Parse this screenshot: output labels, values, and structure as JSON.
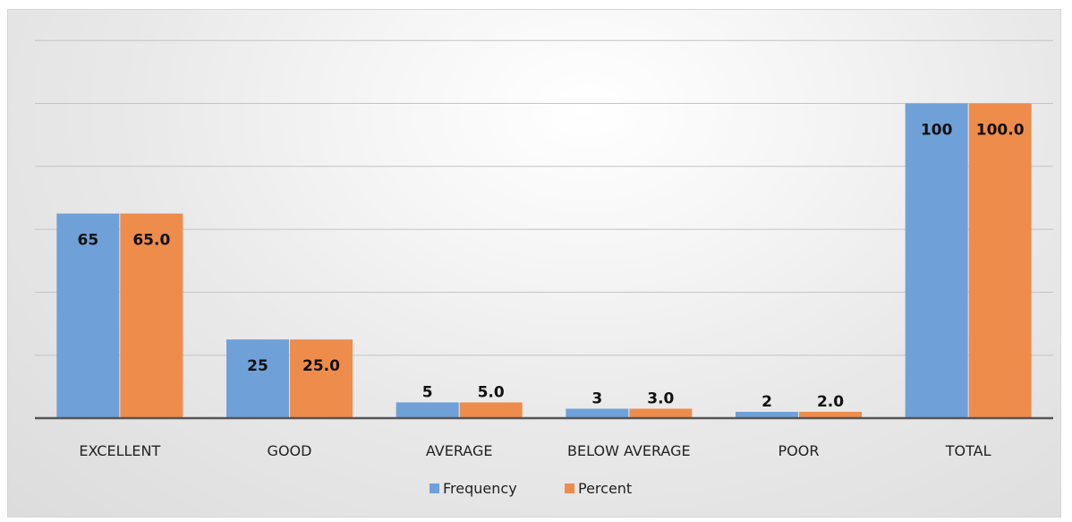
{
  "chart_data": {
    "type": "bar",
    "categories": [
      "EXCELLENT",
      "GOOD",
      "AVERAGE",
      "BELOW AVERAGE",
      "POOR",
      "TOTAL"
    ],
    "series": [
      {
        "name": "Frequency",
        "color": "#6fa1d8",
        "values": [
          65,
          25,
          5,
          3,
          2,
          100
        ],
        "labels": [
          "65",
          "25",
          "5",
          "3",
          "2",
          "100"
        ]
      },
      {
        "name": "Percent",
        "color": "#ee8c4c",
        "values": [
          65.0,
          25.0,
          5.0,
          3.0,
          2.0,
          100.0
        ],
        "labels": [
          "65.0",
          "25.0",
          "5.0",
          "3.0",
          "2.0",
          "100.0"
        ]
      }
    ],
    "ylim": [
      0,
      120
    ],
    "gridlines": true,
    "legend": "bottom"
  }
}
